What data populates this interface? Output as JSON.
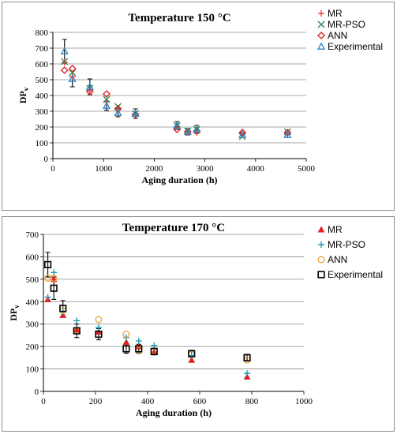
{
  "chart_data": [
    {
      "type": "scatter",
      "title": "Temperature 150 °C",
      "xlabel": "Aging duration (h)",
      "ylabel": "DPv",
      "xlim": [
        0,
        5000
      ],
      "ylim": [
        0,
        800
      ],
      "xticks": [
        "0",
        "1000",
        "2000",
        "3000",
        "4000",
        "5000"
      ],
      "yticks": [
        "0",
        "100",
        "200",
        "300",
        "400",
        "500",
        "600",
        "700",
        "800"
      ],
      "grid": "horizontal",
      "legend_position": "right",
      "series": [
        {
          "name": "MR",
          "marker": "plus",
          "color": "#e8463c",
          "x": [
            230,
            385,
            730,
            1060,
            1285,
            1630,
            2450,
            2660,
            2840,
            3740,
            4630
          ],
          "y": [
            610,
            520,
            430,
            360,
            320,
            270,
            200,
            170,
            165,
            160,
            160
          ]
        },
        {
          "name": "MR-PSO",
          "marker": "x",
          "color": "#2e8b57",
          "x": [
            230,
            385,
            730,
            1060,
            1285,
            1630,
            2450,
            2660,
            2840,
            3740,
            4630
          ],
          "y": [
            615,
            545,
            445,
            375,
            330,
            285,
            210,
            175,
            185,
            140,
            170
          ]
        },
        {
          "name": "ANN",
          "marker": "diamond",
          "color": "#d92020",
          "x": [
            230,
            385,
            730,
            1060,
            1285,
            1630,
            2450,
            2660,
            2840,
            3740,
            4630
          ],
          "y": [
            560,
            570,
            425,
            410,
            315,
            280,
            185,
            170,
            175,
            165,
            165
          ]
        },
        {
          "name": "Experimental",
          "marker": "triangle",
          "color": "#2f86c8",
          "x": [
            230,
            385,
            730,
            1060,
            1285,
            1630,
            2450,
            2660,
            2840,
            3740,
            4630
          ],
          "y": [
            680,
            505,
            455,
            335,
            290,
            285,
            210,
            170,
            185,
            150,
            150
          ],
          "error": [
            75,
            50,
            50,
            30,
            25,
            30,
            25,
            20,
            25,
            15,
            15
          ]
        }
      ]
    },
    {
      "type": "scatter",
      "title": "Temperature 170 °C",
      "xlabel": "Aging duration (h)",
      "ylabel": "DPv",
      "xlim": [
        0,
        1000
      ],
      "ylim": [
        0,
        700
      ],
      "xticks": [
        "0",
        "200",
        "400",
        "600",
        "800",
        "1000"
      ],
      "yticks": [
        "0",
        "100",
        "200",
        "300",
        "400",
        "500",
        "600",
        "700"
      ],
      "grid": "horizontal",
      "legend_position": "right",
      "series": [
        {
          "name": "MR",
          "marker": "triangle-filled",
          "color": "#e02020",
          "x": [
            17,
            40,
            75,
            128,
            212,
            318,
            366,
            425,
            569,
            782
          ],
          "y": [
            410,
            500,
            340,
            275,
            265,
            220,
            200,
            175,
            140,
            65
          ]
        },
        {
          "name": "MR-PSO",
          "marker": "plus",
          "color": "#1f9bb5",
          "x": [
            17,
            40,
            75,
            128,
            212,
            318,
            366,
            425,
            569,
            782
          ],
          "y": [
            420,
            530,
            355,
            315,
            285,
            240,
            225,
            205,
            160,
            80
          ]
        },
        {
          "name": "ANN",
          "marker": "circle",
          "color": "#f0a030",
          "x": [
            17,
            40,
            75,
            128,
            212,
            318,
            366,
            425,
            569,
            782
          ],
          "y": [
            505,
            505,
            360,
            270,
            320,
            255,
            185,
            180,
            165,
            140
          ]
        },
        {
          "name": "Experimental",
          "marker": "square",
          "color": "#000000",
          "x": [
            17,
            40,
            75,
            128,
            212,
            318,
            366,
            425,
            569,
            782
          ],
          "y": [
            565,
            460,
            370,
            270,
            255,
            190,
            190,
            178,
            168,
            150
          ],
          "error": [
            55,
            50,
            35,
            30,
            25,
            20,
            20,
            15,
            15,
            15
          ]
        }
      ]
    }
  ]
}
